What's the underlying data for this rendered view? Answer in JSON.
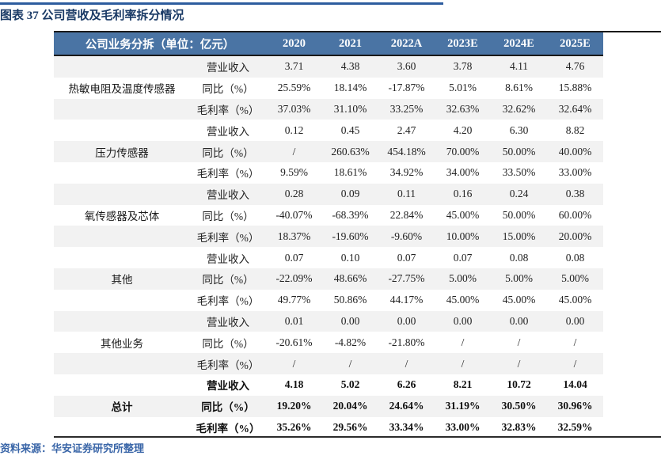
{
  "page": {
    "title": "图表 37 公司营收及毛利率拆分情况",
    "source": "资料来源：华安证券研究所整理"
  },
  "colors": {
    "header_bg": "#4A74A4",
    "title_text": "#1A3A66",
    "source_text": "#3A66A8",
    "stripe_gray": "#F2F2F2",
    "top_line_blue": "#2D5C9E",
    "rule_black": "#1A1A1A"
  },
  "table": {
    "header_label": "公司业务分拆（单位：亿元）",
    "years": [
      "2020",
      "2021",
      "2022A",
      "2023E",
      "2024E",
      "2025E"
    ],
    "groups": [
      {
        "label": "热敏电阻及温度传感器",
        "rows": [
          {
            "metric": "营业收入",
            "values": [
              "3.71",
              "4.38",
              "3.60",
              "3.78",
              "4.11",
              "4.76"
            ]
          },
          {
            "metric": "同比（%）",
            "values": [
              "25.59%",
              "18.14%",
              "-17.87%",
              "5.01%",
              "8.61%",
              "15.88%"
            ]
          },
          {
            "metric": "毛利率（%）",
            "values": [
              "37.03%",
              "31.10%",
              "33.25%",
              "32.63%",
              "32.62%",
              "32.64%"
            ]
          }
        ]
      },
      {
        "label": "压力传感器",
        "rows": [
          {
            "metric": "营业收入",
            "values": [
              "0.12",
              "0.45",
              "2.47",
              "4.20",
              "6.30",
              "8.82"
            ]
          },
          {
            "metric": "同比（%）",
            "values": [
              "/",
              "260.63%",
              "454.18%",
              "70.00%",
              "50.00%",
              "40.00%"
            ]
          },
          {
            "metric": "毛利率（%）",
            "values": [
              "9.59%",
              "18.61%",
              "34.92%",
              "34.00%",
              "33.50%",
              "33.00%"
            ]
          }
        ]
      },
      {
        "label": "氧传感器及芯体",
        "rows": [
          {
            "metric": "营业收入",
            "values": [
              "0.28",
              "0.09",
              "0.11",
              "0.16",
              "0.24",
              "0.38"
            ]
          },
          {
            "metric": "同比（%）",
            "values": [
              "-40.07%",
              "-68.39%",
              "22.84%",
              "45.00%",
              "50.00%",
              "60.00%"
            ]
          },
          {
            "metric": "毛利率（%）",
            "values": [
              "18.37%",
              "-19.60%",
              "-9.60%",
              "10.00%",
              "15.00%",
              "20.00%"
            ]
          }
        ]
      },
      {
        "label": "其他",
        "rows": [
          {
            "metric": "营业收入",
            "values": [
              "0.07",
              "0.10",
              "0.07",
              "0.07",
              "0.08",
              "0.08"
            ]
          },
          {
            "metric": "同比（%）",
            "values": [
              "-22.09%",
              "48.66%",
              "-27.75%",
              "5.00%",
              "5.00%",
              "5.00%"
            ]
          },
          {
            "metric": "毛利率（%）",
            "values": [
              "49.77%",
              "50.86%",
              "44.17%",
              "45.00%",
              "45.00%",
              "45.00%"
            ]
          }
        ]
      },
      {
        "label": "其他业务",
        "rows": [
          {
            "metric": "营业收入",
            "values": [
              "0.01",
              "0.00",
              "0.00",
              "0.00",
              "0.00",
              "0.00"
            ]
          },
          {
            "metric": "同比（%）",
            "values": [
              "-20.61%",
              "-4.82%",
              "-21.80%",
              "/",
              "/",
              "/"
            ]
          },
          {
            "metric": "毛利率（%）",
            "values": [
              "/",
              "/",
              "/",
              "/",
              "/",
              "/"
            ]
          }
        ]
      },
      {
        "label": "总计",
        "rows": [
          {
            "metric": "营业收入",
            "values": [
              "4.18",
              "5.02",
              "6.26",
              "8.21",
              "10.72",
              "14.04"
            ]
          },
          {
            "metric": "同比（%）",
            "values": [
              "19.20%",
              "20.04%",
              "24.64%",
              "31.19%",
              "30.50%",
              "30.96%"
            ]
          },
          {
            "metric": "毛利率（%）",
            "values": [
              "35.26%",
              "29.56%",
              "33.34%",
              "33.00%",
              "32.83%",
              "32.59%"
            ]
          }
        ]
      }
    ]
  }
}
